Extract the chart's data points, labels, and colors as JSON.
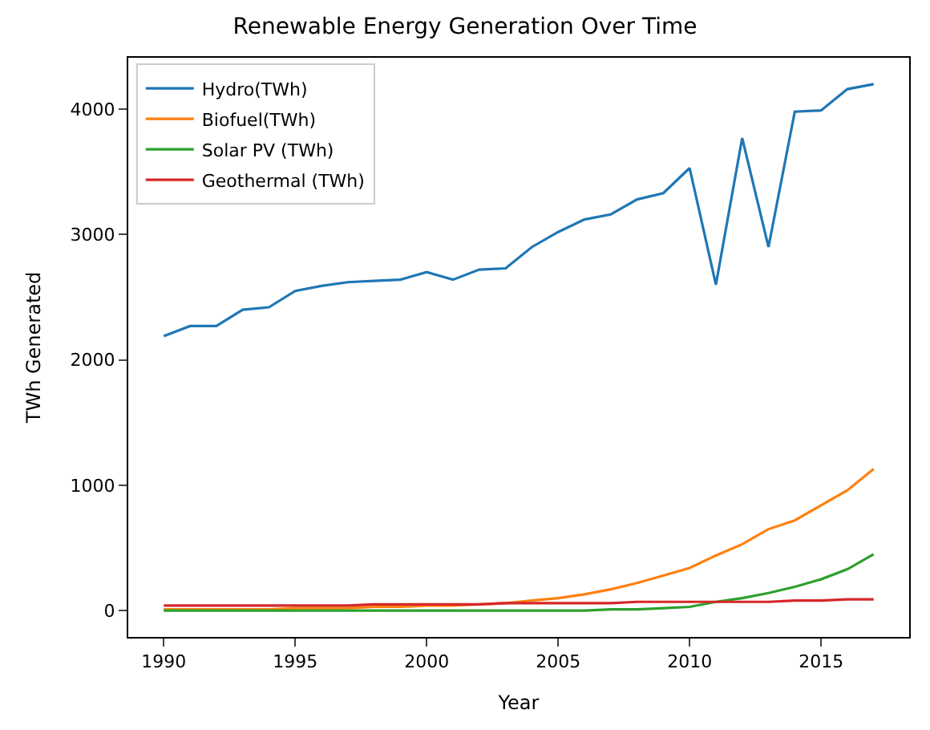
{
  "chart_data": {
    "type": "line",
    "title": "Renewable Energy Generation Over Time",
    "xlabel": "Year",
    "ylabel": "TWh Generated",
    "x": [
      1990,
      1991,
      1992,
      1993,
      1994,
      1995,
      1996,
      1997,
      1998,
      1999,
      2000,
      2001,
      2002,
      2003,
      2004,
      2005,
      2006,
      2007,
      2008,
      2009,
      2010,
      2011,
      2012,
      2013,
      2014,
      2015,
      2016,
      2017
    ],
    "series": [
      {
        "name": "Hydro(TWh)",
        "color": "#1f77b4",
        "values": [
          2190,
          2270,
          2270,
          2400,
          2420,
          2550,
          2590,
          2620,
          2630,
          2640,
          2700,
          2640,
          2720,
          2730,
          2900,
          3020,
          3120,
          3160,
          3280,
          3330,
          3530,
          2600,
          3770,
          2900,
          3980,
          3990,
          4160,
          4200
        ]
      },
      {
        "name": "Biofuel(TWh)",
        "color": "#ff7f0e",
        "values": [
          10,
          10,
          10,
          10,
          10,
          20,
          20,
          20,
          30,
          30,
          40,
          40,
          50,
          60,
          80,
          100,
          130,
          170,
          220,
          280,
          340,
          440,
          530,
          650,
          720,
          840,
          960,
          1130
        ]
      },
      {
        "name": "Solar PV (TWh)",
        "color": "#2ca02c",
        "values": [
          0,
          0,
          0,
          0,
          0,
          0,
          0,
          0,
          0,
          0,
          0,
          0,
          0,
          0,
          0,
          0,
          0,
          10,
          10,
          20,
          30,
          70,
          100,
          140,
          190,
          250,
          330,
          450
        ]
      },
      {
        "name": "Geothermal (TWh)",
        "color": "#d62728",
        "values": [
          40,
          40,
          40,
          40,
          40,
          40,
          40,
          40,
          50,
          50,
          50,
          50,
          50,
          60,
          60,
          60,
          60,
          60,
          70,
          70,
          70,
          70,
          70,
          70,
          80,
          80,
          90,
          90
        ]
      }
    ],
    "xlim": [
      1988.65,
      2018.35
    ],
    "xticks": [
      1990,
      1995,
      2000,
      2005,
      2010,
      2015
    ],
    "ylim": [
      -210,
      4410
    ],
    "yticks": [
      0,
      1000,
      2000,
      3000,
      4000
    ],
    "legend": "top left"
  }
}
